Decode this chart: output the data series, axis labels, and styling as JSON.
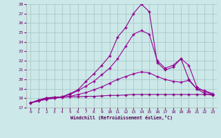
{
  "xlabel": "Windchill (Refroidissement éolien,°C)",
  "xlim": [
    -0.5,
    23.5
  ],
  "ylim": [
    17,
    28
  ],
  "yticks": [
    17,
    18,
    19,
    20,
    21,
    22,
    23,
    24,
    25,
    26,
    27,
    28
  ],
  "xticks": [
    0,
    1,
    2,
    3,
    4,
    5,
    6,
    7,
    8,
    9,
    10,
    11,
    12,
    13,
    14,
    15,
    16,
    17,
    18,
    19,
    20,
    21,
    22,
    23
  ],
  "bg_color": "#cce8e8",
  "curves": [
    {
      "x": [
        0,
        1,
        2,
        3,
        4,
        5,
        6,
        7,
        8,
        9,
        10,
        11,
        12,
        13,
        14,
        15,
        16,
        17,
        18,
        19,
        20,
        21,
        22,
        23
      ],
      "y": [
        17.5,
        17.8,
        18.05,
        18.1,
        18.1,
        18.15,
        18.15,
        18.2,
        18.2,
        18.25,
        18.3,
        18.3,
        18.35,
        18.4,
        18.4,
        18.4,
        18.4,
        18.4,
        18.4,
        18.4,
        18.4,
        18.4,
        18.4,
        18.4
      ],
      "marker": "+",
      "markersize": 3,
      "linewidth": 0.8,
      "color": "#880088"
    },
    {
      "x": [
        0,
        1,
        2,
        3,
        4,
        5,
        6,
        7,
        8,
        9,
        10,
        11,
        12,
        13,
        14,
        15,
        16,
        17,
        18,
        19,
        20,
        21,
        22,
        23
      ],
      "y": [
        17.5,
        17.7,
        17.9,
        18.0,
        18.1,
        18.2,
        18.4,
        18.6,
        18.9,
        19.2,
        19.6,
        20.0,
        20.3,
        20.6,
        20.8,
        20.7,
        20.3,
        20.0,
        19.8,
        19.7,
        19.9,
        19.0,
        18.8,
        18.5
      ],
      "marker": "+",
      "markersize": 3,
      "linewidth": 0.8,
      "color": "#990099"
    },
    {
      "x": [
        0,
        1,
        2,
        3,
        4,
        5,
        6,
        7,
        8,
        9,
        10,
        11,
        12,
        13,
        14,
        15,
        16,
        17,
        18,
        19,
        20,
        21,
        22,
        23
      ],
      "y": [
        17.5,
        17.7,
        17.9,
        18.0,
        18.15,
        18.4,
        18.8,
        19.3,
        19.8,
        20.5,
        21.2,
        22.2,
        23.5,
        24.8,
        25.2,
        24.8,
        22.0,
        21.2,
        21.5,
        22.2,
        21.5,
        19.2,
        18.7,
        18.4
      ],
      "marker": "+",
      "markersize": 3,
      "linewidth": 0.8,
      "color": "#990099"
    },
    {
      "x": [
        0,
        1,
        2,
        3,
        4,
        5,
        6,
        7,
        8,
        9,
        10,
        11,
        12,
        13,
        14,
        15,
        16,
        17,
        18,
        19,
        20,
        21,
        22,
        23
      ],
      "y": [
        17.5,
        17.8,
        18.0,
        18.1,
        18.15,
        18.5,
        18.9,
        19.8,
        20.6,
        21.5,
        22.5,
        24.5,
        25.5,
        27.0,
        28.0,
        27.2,
        21.8,
        21.0,
        21.3,
        22.2,
        20.0,
        19.0,
        18.5,
        18.3
      ],
      "marker": "+",
      "markersize": 3,
      "linewidth": 0.8,
      "color": "#880088"
    }
  ]
}
